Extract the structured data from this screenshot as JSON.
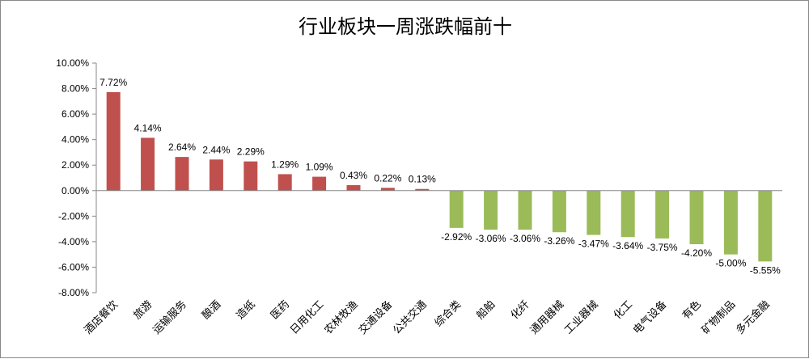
{
  "chart_data": {
    "type": "bar",
    "title": "行业板块一周涨跌幅前十",
    "categories": [
      "酒店餐饮",
      "旅游",
      "运输服务",
      "酿酒",
      "造纸",
      "医药",
      "日用化工",
      "农林牧渔",
      "交通设备",
      "公共交通",
      "综合类",
      "船舶",
      "化纤",
      "通用器械",
      "工业器械",
      "化工",
      "电气设备",
      "有色",
      "矿物制品",
      "多元金融"
    ],
    "values": [
      7.72,
      4.14,
      2.64,
      2.44,
      2.29,
      1.29,
      1.09,
      0.43,
      0.22,
      0.13,
      -2.92,
      -3.06,
      -3.06,
      -3.26,
      -3.47,
      -3.64,
      -3.75,
      -4.2,
      -5.0,
      -5.55
    ],
    "unit": "%",
    "ylim": [
      -8,
      10
    ],
    "yticks": [
      10,
      8,
      6,
      4,
      2,
      0,
      -2,
      -4,
      -6,
      -8
    ],
    "grid": false,
    "colors": {
      "positive": "#c0504d",
      "negative": "#9bbb59"
    }
  }
}
